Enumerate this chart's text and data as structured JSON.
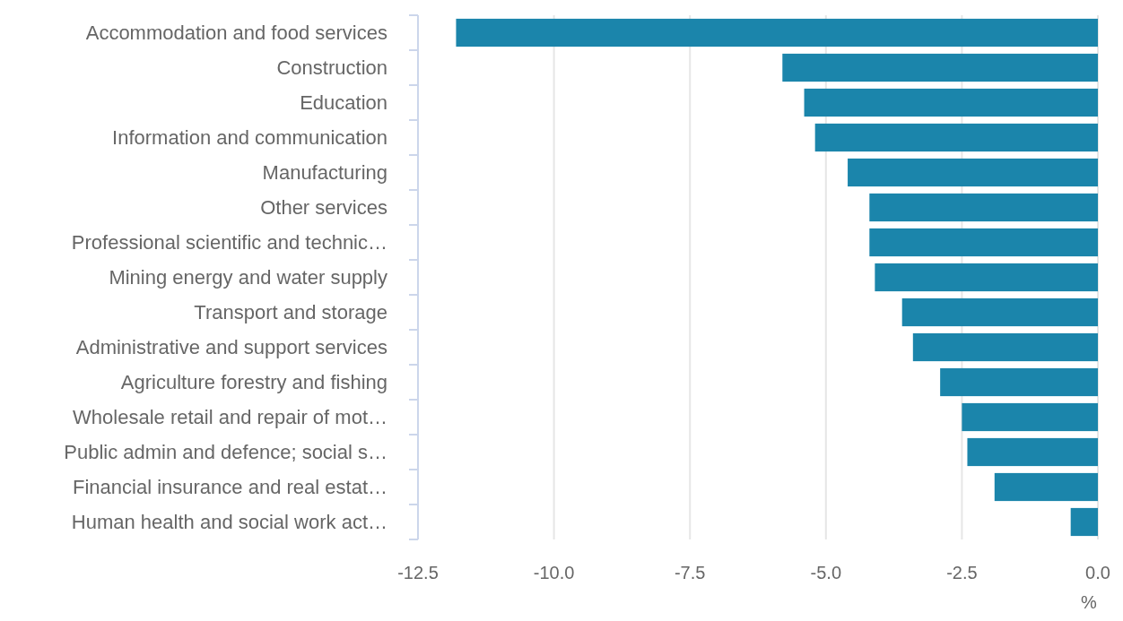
{
  "chart_data": {
    "type": "bar",
    "orientation": "horizontal",
    "categories": [
      "Accommodation and food services",
      "Construction",
      "Education",
      "Information and communication",
      "Manufacturing",
      "Other services",
      "Professional scientific and technic…",
      "Mining energy and water supply",
      "Transport and storage",
      "Administrative and support services",
      "Agriculture forestry and fishing",
      "Wholesale retail and repair of mot…",
      "Public admin and defence; social s…",
      "Financial insurance and real estat…",
      "Human health and social work act…"
    ],
    "values": [
      -11.8,
      -5.8,
      -5.4,
      -5.2,
      -4.6,
      -4.2,
      -4.2,
      -4.1,
      -3.6,
      -3.4,
      -2.9,
      -2.5,
      -2.4,
      -1.9,
      -0.5
    ],
    "color": "#1b85ab",
    "xlim": [
      -12.5,
      0
    ],
    "xticks": [
      {
        "value": -12.5,
        "label": "-12.5"
      },
      {
        "value": -10,
        "label": "-10.0"
      },
      {
        "value": -7.5,
        "label": "-7.5"
      },
      {
        "value": -5,
        "label": "-5.0"
      },
      {
        "value": -2.5,
        "label": "-2.5"
      },
      {
        "value": 0,
        "label": "0.0"
      }
    ],
    "xlabel": "%",
    "grid": "x"
  }
}
